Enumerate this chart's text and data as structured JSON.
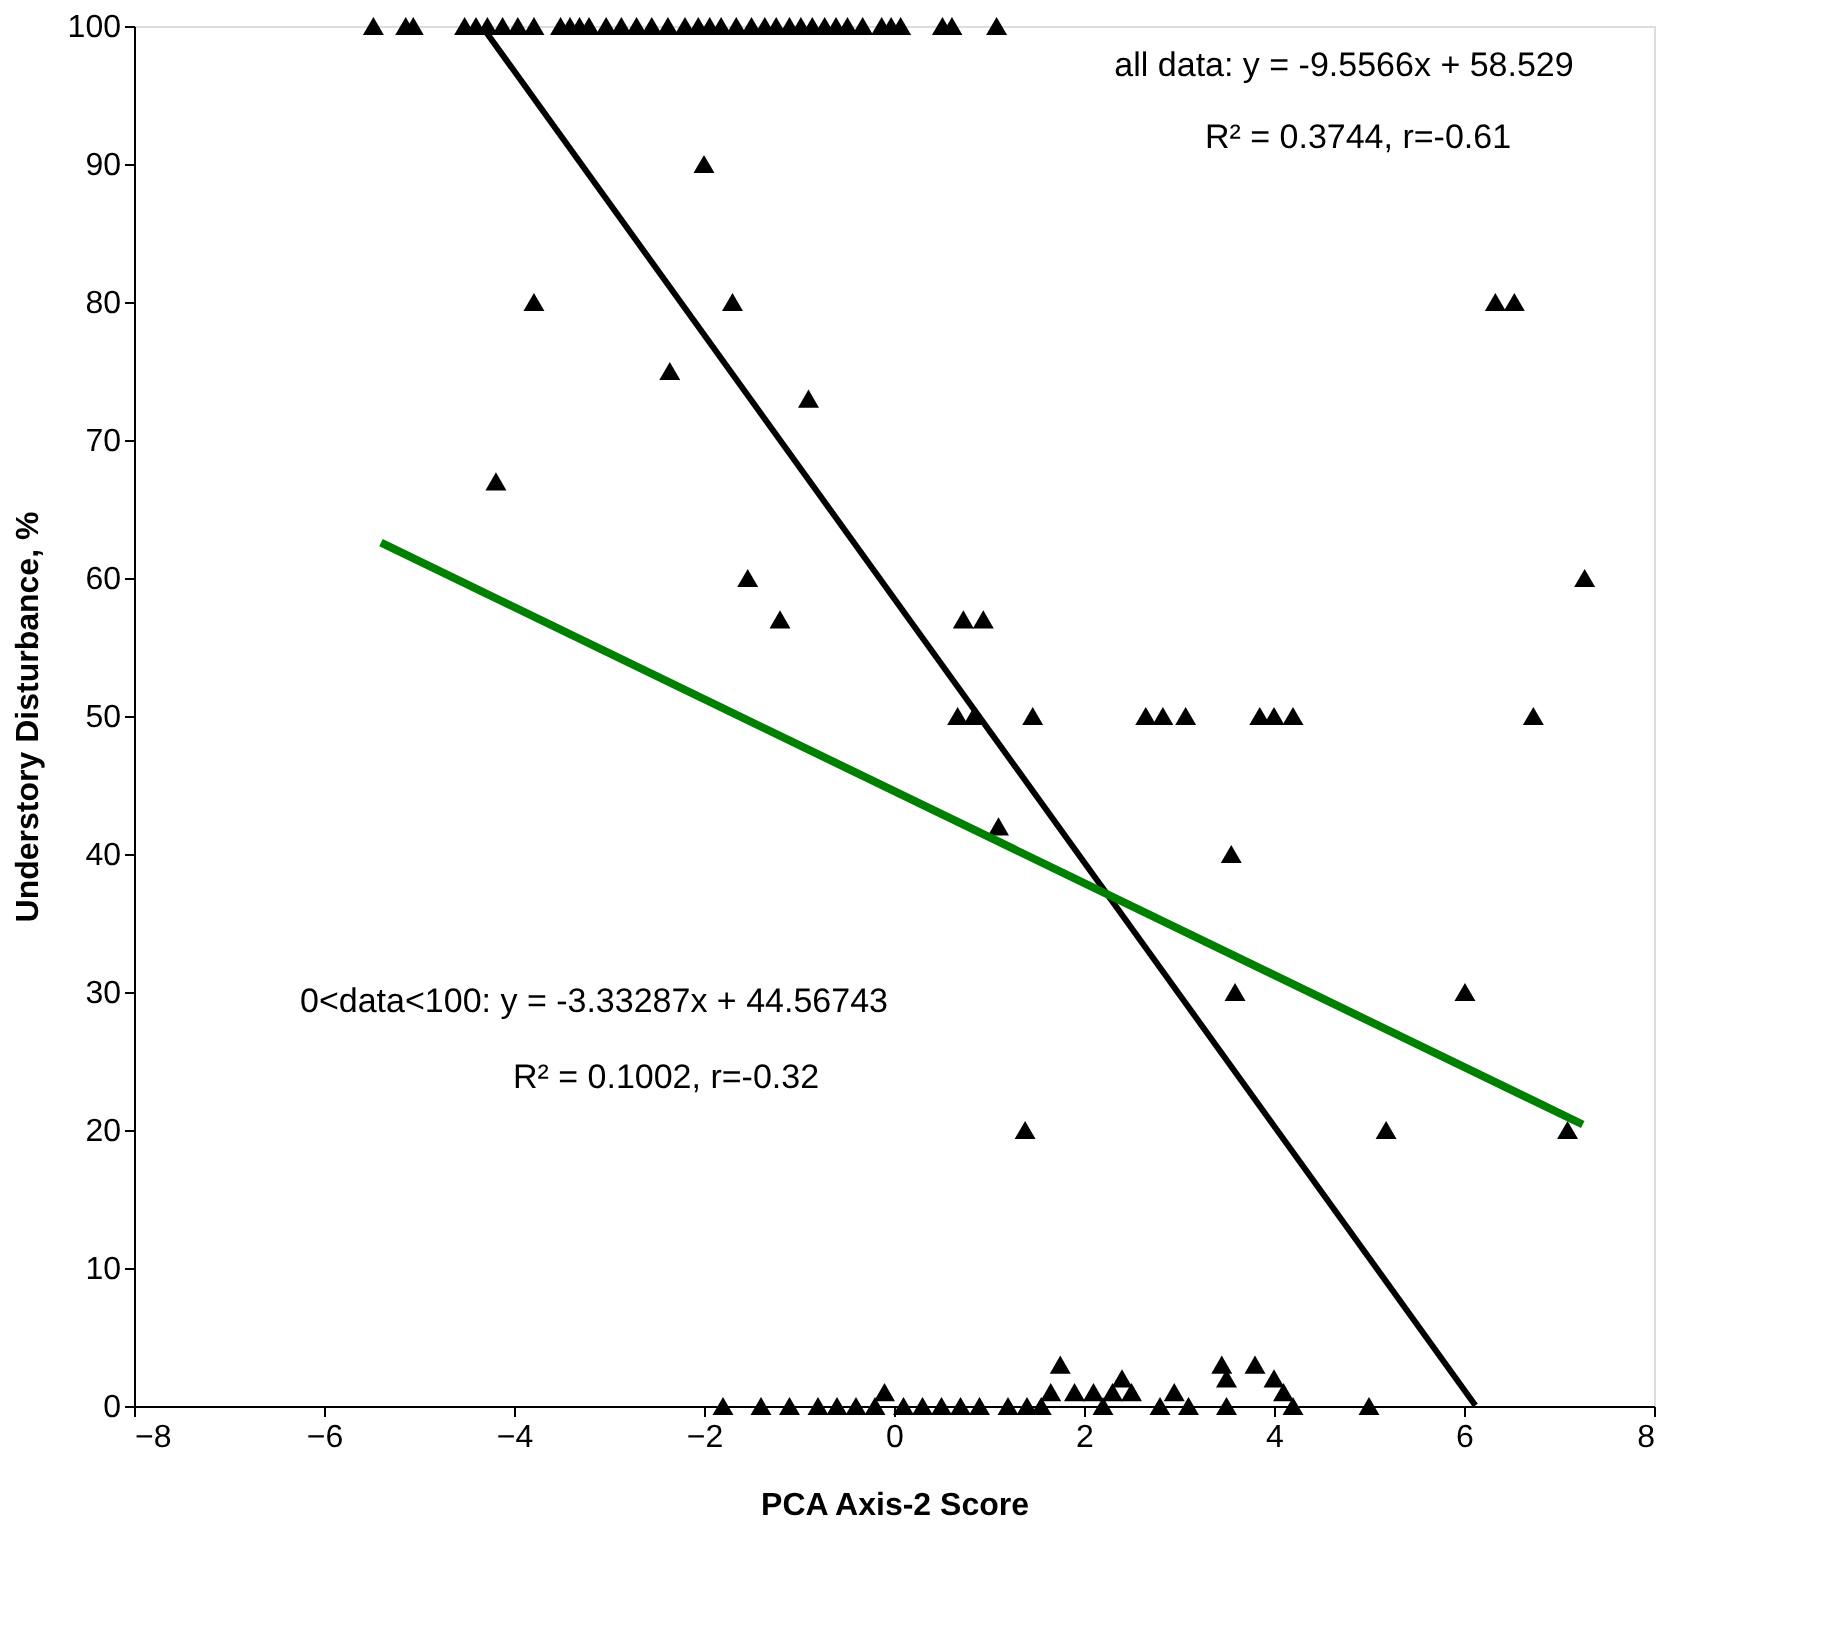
{
  "chart_data": {
    "type": "scatter",
    "xlabel": "PCA Axis-2 Score",
    "ylabel": "Understory Disturbance, %",
    "xlim": [
      -8,
      8
    ],
    "xticks": [
      -8,
      -6,
      -4,
      -2,
      0,
      2,
      4,
      6,
      8
    ],
    "ylim": [
      0,
      100
    ],
    "yticks": [
      0,
      10,
      20,
      30,
      40,
      50,
      60,
      70,
      80,
      90,
      100
    ],
    "grid": false,
    "series": [
      {
        "marker": "triangle",
        "color": "#000000",
        "x": [
          -5.48,
          -5.14,
          -5.06,
          -4.52,
          -4.4,
          -4.28,
          -4.12,
          -3.96,
          -3.79,
          -3.51,
          -3.41,
          -3.31,
          -3.21,
          -3.03,
          -2.87,
          -2.71,
          -2.55,
          -2.38,
          -2.2,
          -2.06,
          -1.94,
          -1.82,
          -1.66,
          -1.5,
          -1.36,
          -1.24,
          -1.1,
          -0.98,
          -0.86,
          -0.73,
          -0.61,
          -0.49,
          -0.33,
          -0.13,
          -0.03,
          0.07,
          0.51,
          0.61,
          1.08,
          -4.19,
          -3.79,
          -2.0,
          -2.36,
          -1.7,
          -1.54,
          -1.2,
          -0.9,
          0.73,
          0.94,
          0.67,
          0.84,
          1.1,
          1.46,
          1.38,
          2.65,
          2.83,
          3.07,
          3.55,
          3.59,
          3.85,
          4.0,
          4.2,
          5.18,
          6.01,
          6.33,
          6.53,
          6.73,
          7.09,
          7.27,
          -1.8,
          -1.4,
          -1.1,
          -0.8,
          -0.6,
          -0.4,
          -0.2,
          -0.1,
          0.1,
          0.3,
          0.5,
          0.7,
          0.9,
          1.2,
          1.4,
          1.55,
          1.65,
          1.75,
          1.9,
          2.1,
          2.2,
          2.3,
          2.4,
          2.5,
          2.8,
          2.95,
          3.1,
          3.45,
          3.5,
          3.5,
          3.8,
          4.0,
          4.1,
          4.2,
          5.0
        ],
        "values": [
          100,
          100,
          100,
          100,
          100,
          100,
          100,
          100,
          100,
          100,
          100,
          100,
          100,
          100,
          100,
          100,
          100,
          100,
          100,
          100,
          100,
          100,
          100,
          100,
          100,
          100,
          100,
          100,
          100,
          100,
          100,
          100,
          100,
          100,
          100,
          100,
          100,
          100,
          100,
          67,
          80,
          90,
          75,
          80,
          60,
          57,
          73,
          57,
          57,
          50,
          50,
          42,
          50,
          20,
          50,
          50,
          50,
          40,
          30,
          50,
          50,
          50,
          20,
          30,
          80,
          80,
          50,
          20,
          60,
          0,
          0,
          0,
          0,
          0,
          0,
          0,
          1,
          0,
          0,
          0,
          0,
          0,
          0,
          0,
          0,
          1,
          3,
          1,
          1,
          0,
          1,
          2,
          1,
          0,
          1,
          0,
          3,
          2,
          0,
          3,
          2,
          1,
          0,
          0
        ]
      },
      {
        "type": "line",
        "color": "#000000",
        "x": [
          -4.3,
          6.12
        ],
        "values": [
          99.62,
          0.04
        ]
      },
      {
        "type": "line",
        "color": "#008000",
        "x": [
          -5.4,
          7.25
        ],
        "values": [
          62.56,
          20.4
        ]
      }
    ],
    "annotations": [
      "all data: y = -9.5566x + 58.529",
      "R² = 0.3744, r=-0.61",
      "0<data<100: y = -3.33287x + 44.56743",
      "R² = 0.1002, r=-0.32"
    ]
  }
}
